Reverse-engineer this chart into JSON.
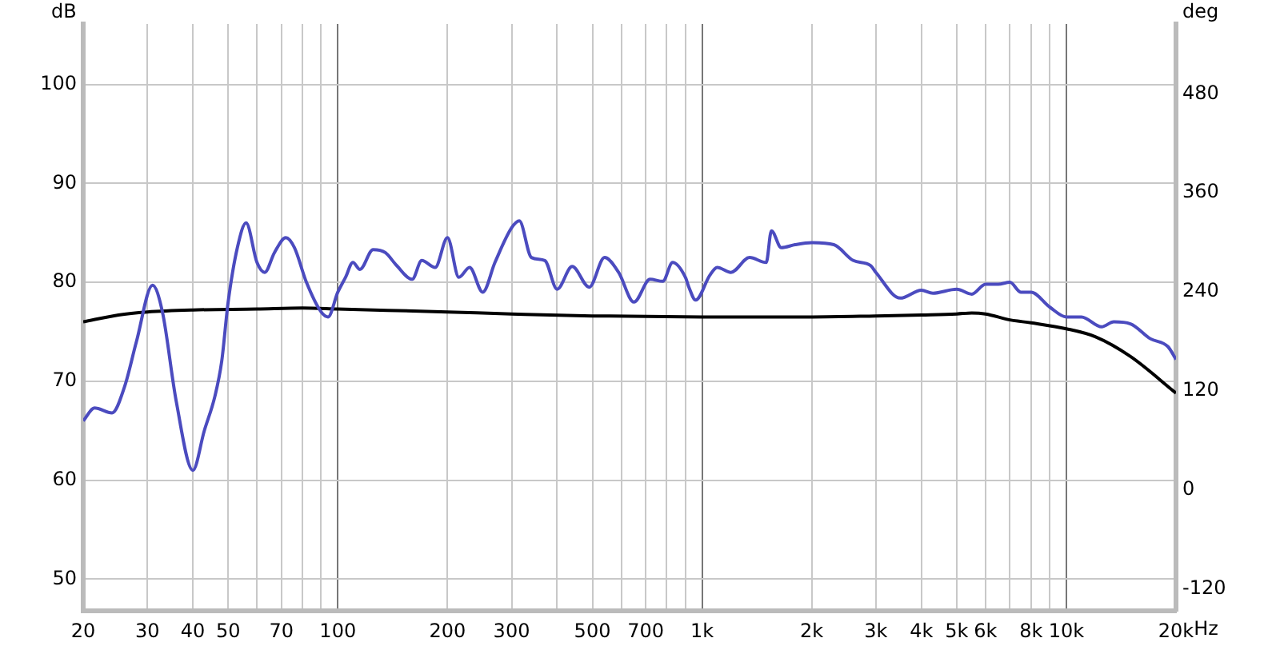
{
  "chart_data": {
    "type": "line",
    "ylabel": "dB",
    "y2label": "deg",
    "log": "x",
    "grid": true,
    "legend": false,
    "marker": "none",
    "line_style": "solid",
    "xlim": [
      20,
      20000
    ],
    "ylim": [
      46.8,
      106.1
    ],
    "y2lim": [
      -158,
      553
    ],
    "xticks": [
      20,
      30,
      40,
      50,
      {
        "value": 60,
        "label": null
      },
      70,
      {
        "value": 80,
        "label": null
      },
      {
        "value": 90,
        "label": null
      },
      100,
      200,
      300,
      {
        "value": 400,
        "label": null
      },
      500,
      {
        "value": 600,
        "label": null
      },
      700,
      {
        "value": 800,
        "label": null
      },
      {
        "value": 900,
        "label": null
      },
      {
        "value": 1000,
        "label": "1k"
      },
      {
        "value": 2000,
        "label": "2k"
      },
      {
        "value": 3000,
        "label": "3k"
      },
      {
        "value": 4000,
        "label": "4k"
      },
      {
        "value": 5000,
        "label": "5k"
      },
      {
        "value": 6000,
        "label": "6k"
      },
      {
        "value": 7000,
        "label": null
      },
      {
        "value": 8000,
        "label": "8k"
      },
      {
        "value": 9000,
        "label": null
      },
      {
        "value": 10000,
        "label": "10k"
      },
      {
        "value": 20000,
        "label": "20k"
      }
    ],
    "xlabel": "Hz",
    "yticks": [
      50,
      60,
      70,
      80,
      90,
      100
    ],
    "y2ticks": [
      -120,
      0,
      120,
      240,
      360,
      480
    ],
    "series": [
      {
        "color": "#4b4bbf",
        "x": [
          20,
          21.5,
          24,
          26,
          28,
          31,
          33,
          36,
          40,
          43,
          46,
          48,
          50,
          53,
          56,
          60,
          63,
          67,
          72,
          76,
          82,
          90,
          94,
          100,
          105,
          110,
          115,
          125,
          135,
          145,
          160,
          170,
          185,
          200,
          215,
          230,
          250,
          270,
          300,
          315,
          340,
          370,
          400,
          440,
          490,
          540,
          590,
          650,
          720,
          780,
          830,
          900,
          920,
          960,
          1050,
          1100,
          1200,
          1350,
          1500,
          1550,
          1650,
          1800,
          2000,
          2300,
          2600,
          2900,
          3000,
          3500,
          4000,
          4300,
          5000,
          5500,
          6000,
          6500,
          7000,
          7500,
          8000,
          9000,
          10000,
          11000,
          12500,
          13500,
          15000,
          17000,
          19000,
          20000
        ],
        "values": [
          66,
          67.3,
          66.8,
          69.5,
          74,
          79.7,
          77,
          68,
          61,
          65,
          68.5,
          72,
          78,
          83.5,
          86,
          82,
          81,
          83,
          84.5,
          83.5,
          80,
          77,
          76.5,
          79,
          80.5,
          82,
          81.3,
          83.3,
          83,
          81.7,
          80.3,
          82.2,
          81.5,
          84.5,
          80.5,
          81.5,
          79,
          82,
          85.5,
          86.2,
          82.5,
          82.2,
          79.3,
          81.6,
          79.5,
          82.5,
          81,
          78,
          80.3,
          80.1,
          82,
          80.5,
          79.5,
          78.2,
          80.7,
          81.5,
          81,
          82.5,
          82,
          85.2,
          83.5,
          83.8,
          84,
          83.8,
          82.2,
          81.7,
          81,
          78.4,
          79.2,
          78.9,
          79.3,
          78.8,
          79.8,
          79.8,
          80,
          79,
          79,
          77.5,
          76.5,
          76.5,
          75.5,
          76,
          75.8,
          74.3,
          73.5,
          72.2
        ]
      },
      {
        "color": "#000000",
        "x": [
          20,
          25,
          30,
          40,
          60,
          80,
          100,
          200,
          300,
          500,
          1000,
          2000,
          3000,
          4000,
          5000,
          5500,
          6000,
          7000,
          8000,
          10000,
          12000,
          15000,
          20000
        ],
        "values": [
          76,
          76.7,
          77,
          77.2,
          77.3,
          77.4,
          77.3,
          77,
          76.8,
          76.6,
          76.5,
          76.5,
          76.6,
          76.7,
          76.8,
          76.9,
          76.8,
          76.2,
          75.9,
          75.3,
          74.5,
          72.5,
          68.8
        ]
      }
    ]
  }
}
